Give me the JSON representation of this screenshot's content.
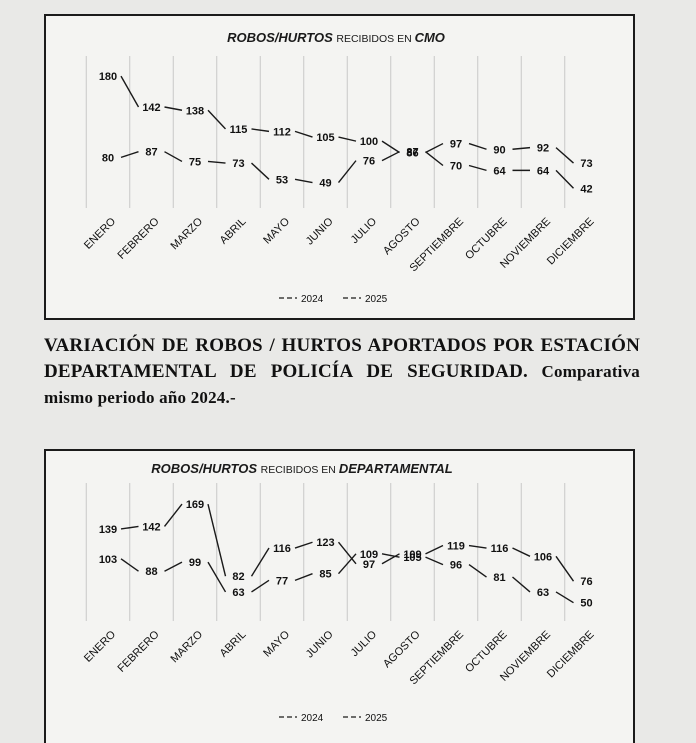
{
  "page": {
    "heading_part1": "VARIACIÓN DE ROBOS / HURTOS APORTADOS POR ESTACIÓN DEPARTAMENTAL DE POLICÍA DE SEGURIDAD.",
    "heading_part2": "Comparativa mismo periodo año 2024.-"
  },
  "colors": {
    "line": "#1a1a1a",
    "grid": "#c8c8c8",
    "border": "#1b1b1b"
  },
  "chart_data": [
    {
      "type": "line",
      "title_prefix": "ROBOS/HURTOS",
      "title_middle": "RECIBIDOS EN",
      "title_suffix": "CMO",
      "categories": [
        "ENERO",
        "FEBRERO",
        "MARZO",
        "ABRIL",
        "MAYO",
        "JUNIO",
        "JULIO",
        "AGOSTO",
        "SEPTIEMBRE",
        "OCTUBRE",
        "NOVIEMBRE",
        "DICIEMBRE"
      ],
      "series": [
        {
          "name": "2024",
          "values": [
            180,
            142,
            138,
            115,
            112,
            105,
            100,
            86,
            97,
            90,
            92,
            73
          ]
        },
        {
          "name": "2025",
          "values": [
            80,
            87,
            75,
            73,
            53,
            49,
            76,
            87,
            70,
            64,
            64,
            42
          ]
        }
      ],
      "legend": [
        "2024",
        "2025"
      ],
      "legend_position": "bottom",
      "grid": true
    },
    {
      "type": "line",
      "title_prefix": "ROBOS/HURTOS",
      "title_middle": "RECIBIDOS EN",
      "title_suffix": "DEPARTAMENTAL",
      "categories": [
        "ENERO",
        "FEBRERO",
        "MARZO",
        "ABRIL",
        "MAYO",
        "JUNIO",
        "JULIO",
        "AGOSTO",
        "SEPTIEMBRE",
        "OCTUBRE",
        "NOVIEMBRE",
        "DICIEMBRE"
      ],
      "series": [
        {
          "name": "2024",
          "values": [
            139,
            142,
            169,
            82,
            116,
            123,
            97,
            109,
            119,
            116,
            106,
            76
          ]
        },
        {
          "name": "2025",
          "values": [
            103,
            88,
            99,
            63,
            77,
            85,
            109,
            105,
            96,
            81,
            63,
            50
          ]
        }
      ],
      "legend": [
        "2024",
        "2025"
      ],
      "legend_position": "bottom",
      "grid": true
    }
  ]
}
